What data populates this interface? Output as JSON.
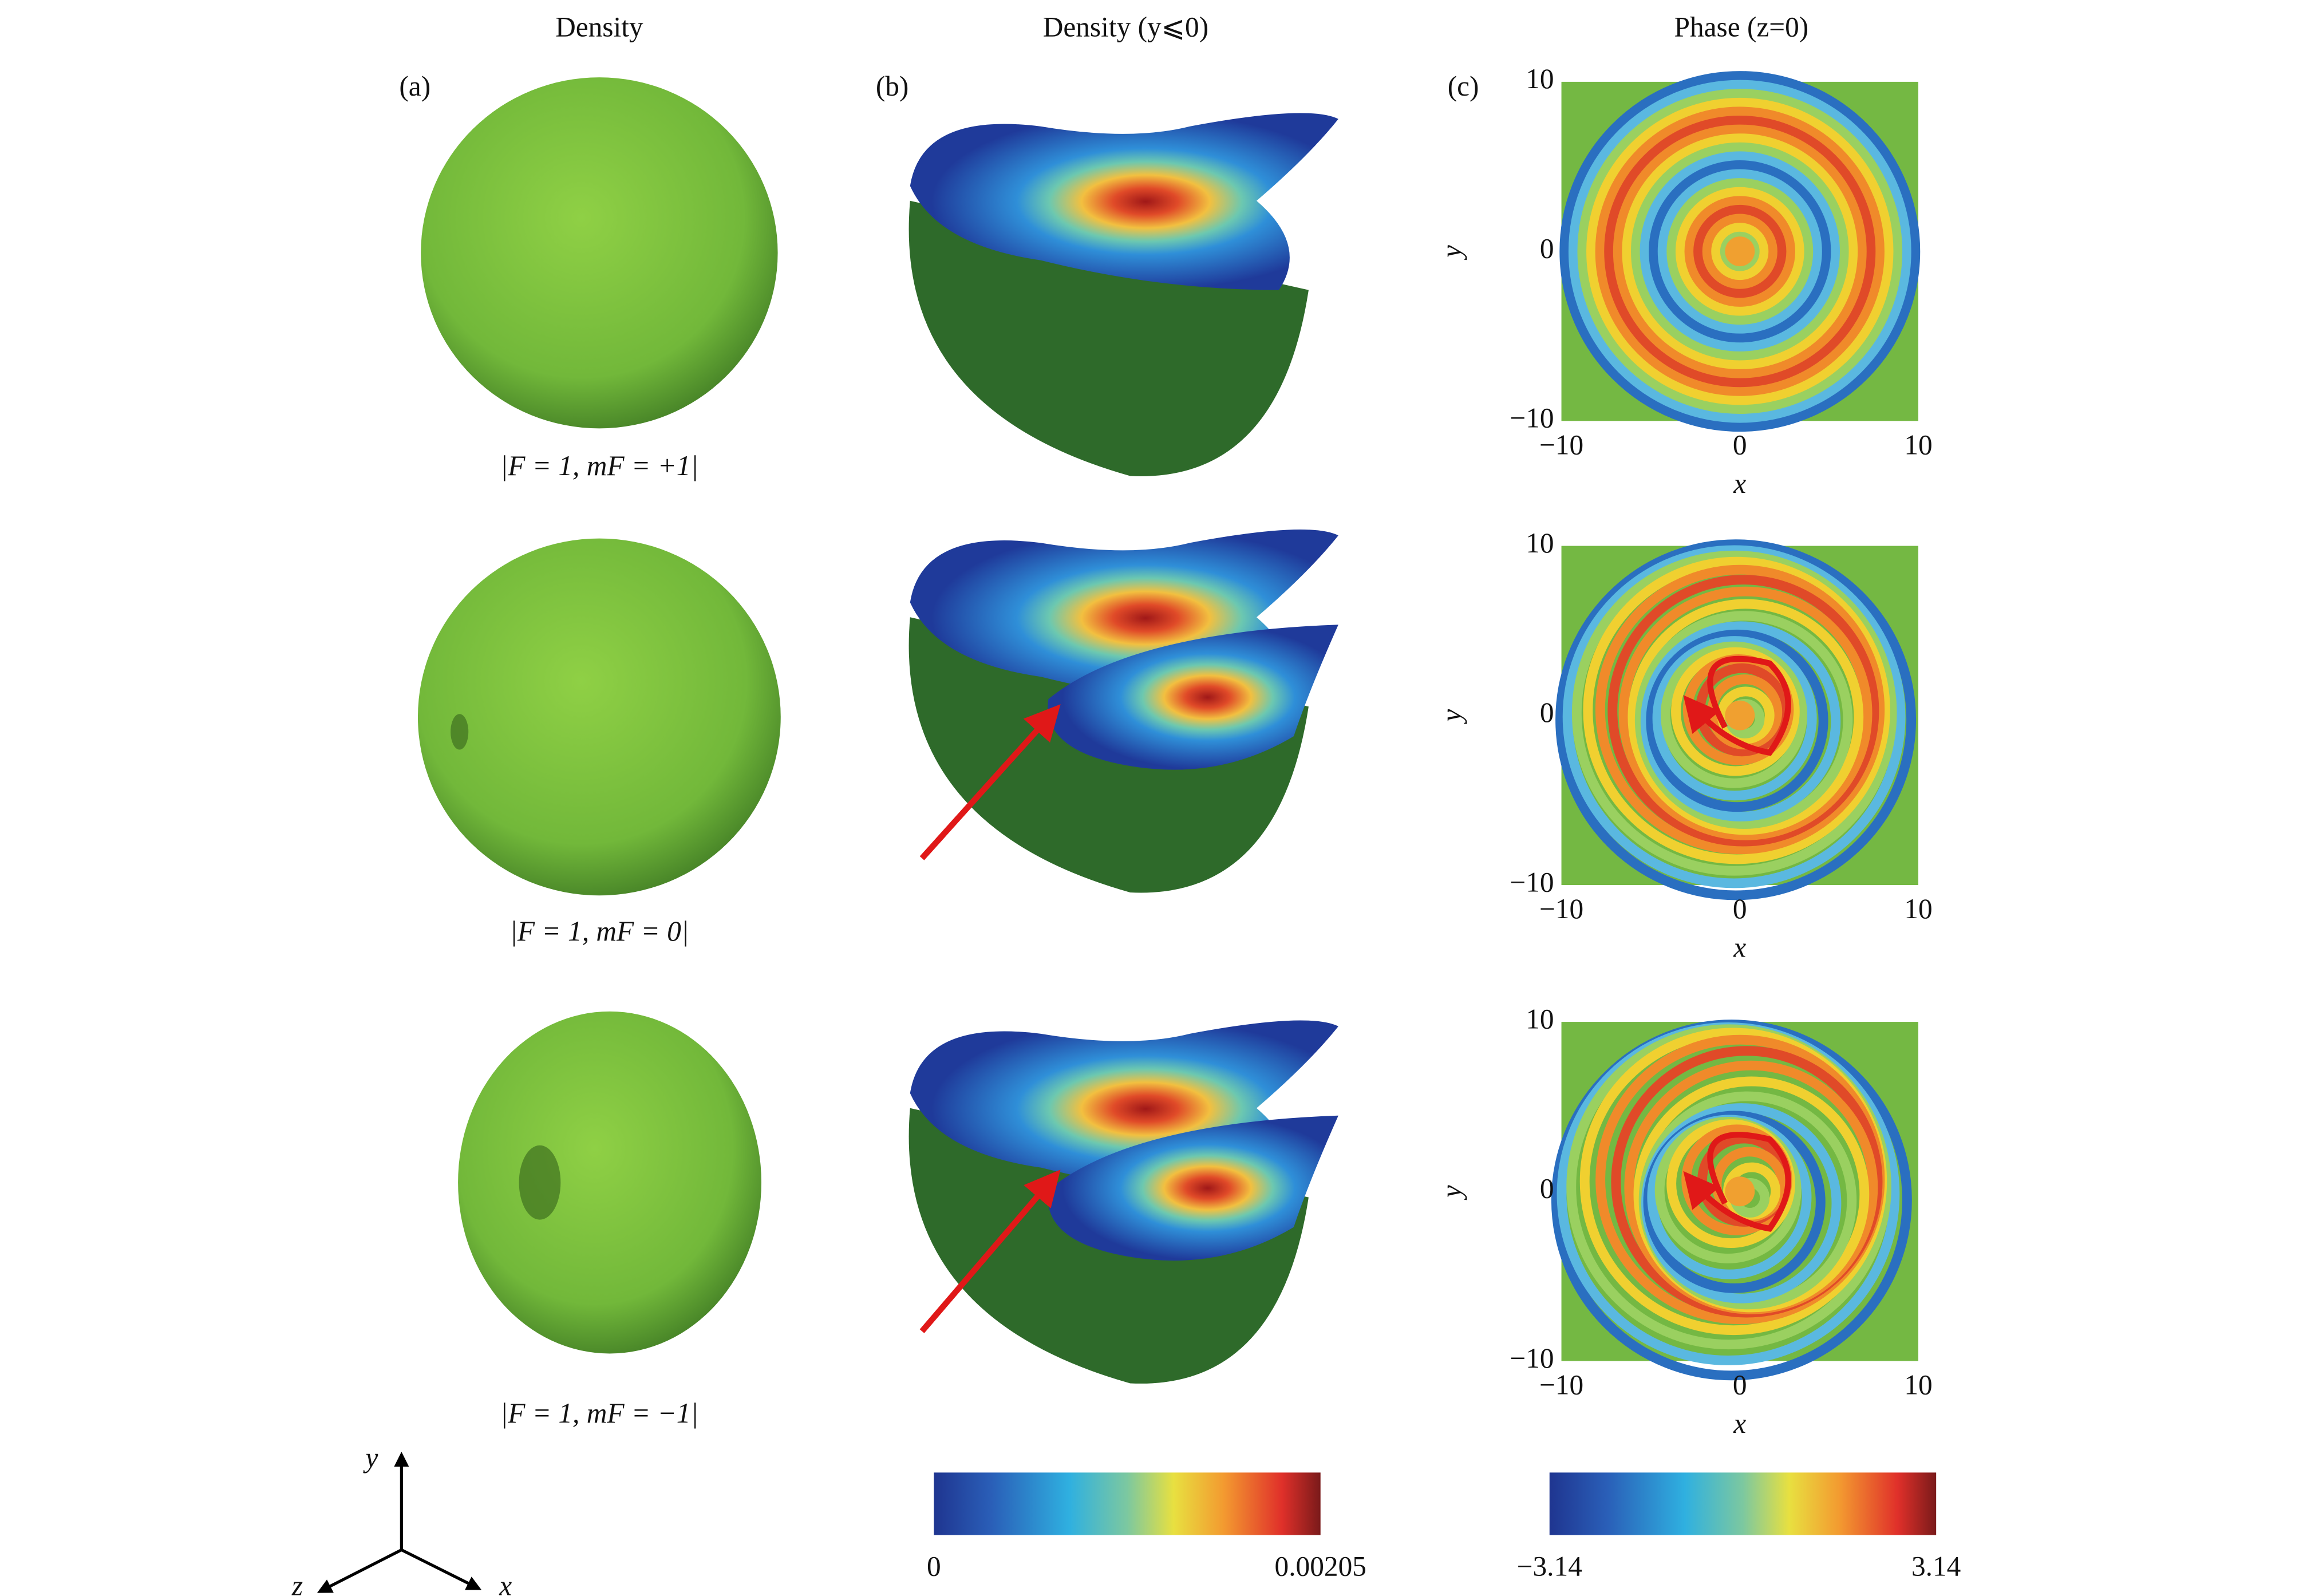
{
  "columns": [
    "Density",
    "Density (y⩽0)",
    "Phase (z=0)"
  ],
  "panels": [
    "(a)",
    "(b)",
    "(c)"
  ],
  "states": [
    "|F = 1, mF = +1|",
    "|F = 1, mF = 0|",
    "|F = 1, mF = −1|"
  ],
  "phase_axes": {
    "x_label": "x",
    "y_label": "y",
    "ticks": [
      "−10",
      "0",
      "10"
    ]
  },
  "colorbars": [
    {
      "min": "0",
      "max": "0.00205"
    },
    {
      "min": "−3.14",
      "max": "3.14"
    }
  ],
  "triad": {
    "y": "y",
    "z": "z",
    "x": "x"
  }
}
